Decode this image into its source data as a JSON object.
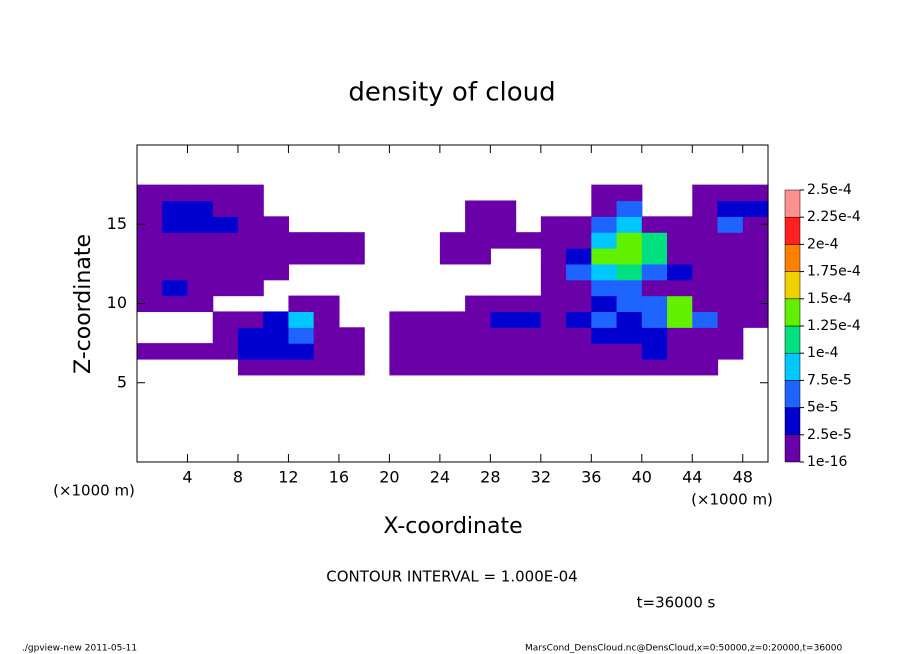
{
  "chart_data": {
    "type": "contour",
    "title": "density of cloud",
    "x_label": "X-coordinate",
    "y_label": "Z-coordinate",
    "x_units": "(×1000 m)",
    "y_units": "(×1000 m)",
    "contour_interval": "CONTOUR INTERVAL = 1.000E-04",
    "time_label": "t=36000 s",
    "footer_left": "./gpview-new  2011-05-11",
    "footer_right": "MarsCond_DensCloud.nc@DensCloud,x=0:50000,z=0:20000,t=36000",
    "xlim": [
      0,
      50
    ],
    "ylim": [
      0,
      20
    ],
    "xticks": [
      4,
      8,
      12,
      16,
      20,
      24,
      28,
      32,
      36,
      40,
      44,
      48
    ],
    "yticks": [
      5,
      10,
      15
    ],
    "x": [
      1,
      3,
      5,
      7,
      9,
      11,
      13,
      15,
      17,
      19,
      21,
      23,
      25,
      27,
      29,
      31,
      33,
      35,
      37,
      39,
      41,
      43,
      45,
      47,
      49
    ],
    "z": [
      6,
      7,
      8,
      9,
      10,
      11,
      12,
      13,
      14,
      15,
      16,
      17
    ],
    "values": [
      [
        null,
        null,
        null,
        null,
        1e-05,
        1e-05,
        1e-05,
        1e-05,
        1e-05,
        null,
        1e-05,
        1e-05,
        1e-05,
        1e-05,
        1e-05,
        1e-05,
        1e-05,
        1e-05,
        1e-05,
        1e-05,
        1e-05,
        1e-05,
        1e-05,
        null,
        null
      ],
      [
        1e-05,
        1e-05,
        1e-05,
        1e-05,
        3.5e-05,
        3.5e-05,
        3.5e-05,
        1e-05,
        1e-05,
        null,
        1e-05,
        1e-05,
        1e-05,
        1e-05,
        1e-05,
        1e-05,
        1e-05,
        1e-05,
        1e-05,
        1e-05,
        3.5e-05,
        1e-05,
        1e-05,
        1e-05,
        null
      ],
      [
        null,
        null,
        null,
        1e-05,
        3.5e-05,
        3.5e-05,
        6e-05,
        1e-05,
        1e-05,
        null,
        1e-05,
        1e-05,
        1e-05,
        1e-05,
        1e-05,
        1e-05,
        1e-05,
        1e-05,
        3.5e-05,
        3.5e-05,
        3.5e-05,
        1e-05,
        1e-05,
        1e-05,
        null
      ],
      [
        null,
        null,
        null,
        1e-05,
        1e-05,
        3.5e-05,
        8.5e-05,
        1e-05,
        null,
        null,
        1e-05,
        1e-05,
        1e-05,
        1e-05,
        3.5e-05,
        3.5e-05,
        1e-05,
        3.5e-05,
        6e-05,
        3.5e-05,
        6e-05,
        0.00014,
        6e-05,
        1e-05,
        1e-05
      ],
      [
        1e-05,
        1e-05,
        1e-05,
        null,
        null,
        null,
        1e-05,
        1e-05,
        null,
        null,
        null,
        null,
        null,
        1e-05,
        1e-05,
        1e-05,
        1e-05,
        1e-05,
        3.5e-05,
        6e-05,
        6e-05,
        0.00014,
        1e-05,
        1e-05,
        1e-05
      ],
      [
        1e-05,
        3.5e-05,
        1e-05,
        1e-05,
        1e-05,
        null,
        null,
        null,
        null,
        null,
        null,
        null,
        null,
        null,
        null,
        null,
        1e-05,
        1e-05,
        6e-05,
        6e-05,
        1e-05,
        1e-05,
        1e-05,
        1e-05,
        1e-05
      ],
      [
        1e-05,
        1e-05,
        1e-05,
        1e-05,
        1e-05,
        1e-05,
        null,
        null,
        null,
        null,
        null,
        null,
        null,
        null,
        null,
        null,
        1e-05,
        6e-05,
        8.5e-05,
        0.00011,
        6e-05,
        3.5e-05,
        1e-05,
        1e-05,
        1e-05
      ],
      [
        1e-05,
        1e-05,
        1e-05,
        1e-05,
        1e-05,
        1e-05,
        1e-05,
        1e-05,
        1e-05,
        null,
        null,
        null,
        1e-05,
        1e-05,
        null,
        null,
        1e-05,
        3.5e-05,
        0.00014,
        0.00014,
        0.00011,
        1e-05,
        1e-05,
        1e-05,
        1e-05
      ],
      [
        1e-05,
        1e-05,
        1e-05,
        1e-05,
        1e-05,
        1e-05,
        1e-05,
        1e-05,
        1e-05,
        null,
        null,
        null,
        1e-05,
        1e-05,
        1e-05,
        1e-05,
        1e-05,
        1e-05,
        8.5e-05,
        0.00014,
        0.00011,
        1e-05,
        1e-05,
        1e-05,
        1e-05
      ],
      [
        1e-05,
        3.5e-05,
        3.5e-05,
        3.5e-05,
        1e-05,
        1e-05,
        null,
        null,
        null,
        null,
        null,
        null,
        null,
        1e-05,
        1e-05,
        null,
        1e-05,
        1e-05,
        6e-05,
        8.5e-05,
        1e-05,
        1e-05,
        1e-05,
        6e-05,
        1e-05
      ],
      [
        1e-05,
        3.5e-05,
        3.5e-05,
        1e-05,
        1e-05,
        null,
        null,
        null,
        null,
        null,
        null,
        null,
        null,
        1e-05,
        1e-05,
        null,
        null,
        null,
        1e-05,
        6e-05,
        null,
        null,
        1e-05,
        3.5e-05,
        3.5e-05
      ],
      [
        1e-05,
        1e-05,
        1e-05,
        1e-05,
        1e-05,
        null,
        null,
        null,
        null,
        null,
        null,
        null,
        null,
        null,
        null,
        null,
        null,
        null,
        1e-05,
        1e-05,
        null,
        null,
        1e-05,
        1e-05,
        1e-05
      ]
    ],
    "colorbar": {
      "levels": [
        {
          "value": 1e-16,
          "label": "1e-16"
        },
        {
          "value": 2.5e-05,
          "label": "2.5e-5"
        },
        {
          "value": 5e-05,
          "label": "5e-5"
        },
        {
          "value": 7.5e-05,
          "label": "7.5e-5"
        },
        {
          "value": 0.0001,
          "label": "1e-4"
        },
        {
          "value": 0.000125,
          "label": "1.25e-4"
        },
        {
          "value": 0.00015,
          "label": "1.5e-4"
        },
        {
          "value": 0.000175,
          "label": "1.75e-4"
        },
        {
          "value": 0.0002,
          "label": "2e-4"
        },
        {
          "value": 0.000225,
          "label": "2.25e-4"
        },
        {
          "value": 0.00025,
          "label": "2.5e-4"
        }
      ],
      "colors": [
        "#6a00a8",
        "#0000d0",
        "#1e64ff",
        "#00c8ff",
        "#00e080",
        "#60f000",
        "#f0d000",
        "#ff8000",
        "#ff2020",
        "#ff9090"
      ]
    }
  }
}
